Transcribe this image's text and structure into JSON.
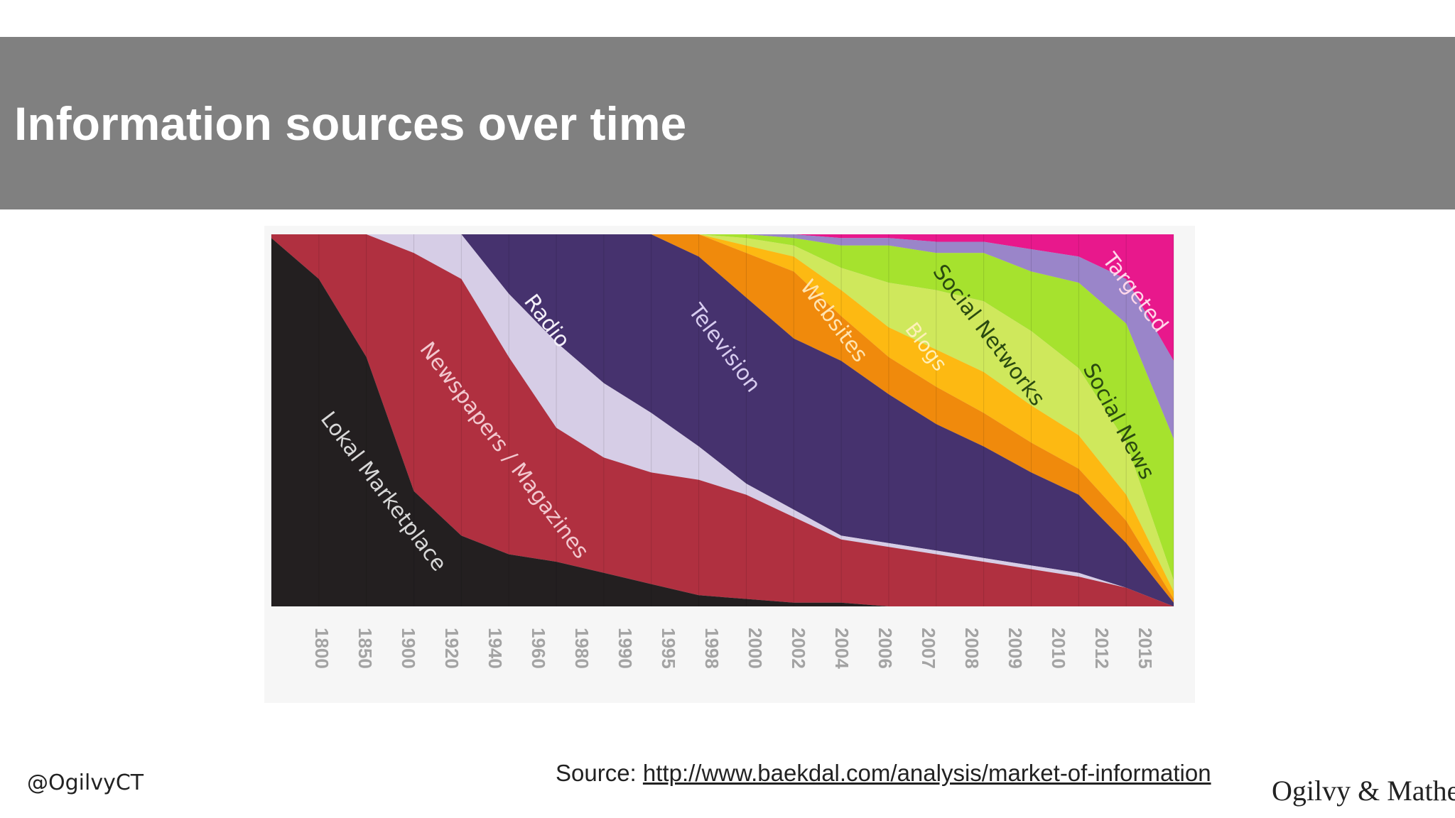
{
  "slide": {
    "title": "Information sources over time",
    "handle": "@OgilvyCT",
    "source_prefix": "Source: ",
    "source_link": "http://www.baekdal.com/analysis/market-of-information",
    "logo_text": "Ogilvy & Mather"
  },
  "chart_data": {
    "type": "area",
    "stacked": true,
    "normalized": true,
    "title": "",
    "xlabel": "",
    "ylabel": "",
    "ylim": [
      0,
      1
    ],
    "grid": "vertical",
    "legend": "none (labels drawn inside areas)",
    "x": [
      "1800",
      "1850",
      "1900",
      "1920",
      "1940",
      "1960",
      "1980",
      "1990",
      "1995",
      "1998",
      "2000",
      "2002",
      "2004",
      "2006",
      "2007",
      "2008",
      "2009",
      "2010",
      "2012",
      "2015"
    ],
    "series": [
      {
        "name": "Lokal Marketplace",
        "color": "#231f20",
        "values": [
          0.99,
          0.88,
          0.67,
          0.31,
          0.19,
          0.14,
          0.12,
          0.09,
          0.06,
          0.03,
          0.02,
          0.01,
          0.01,
          0.0,
          0.0,
          0.0,
          0.0,
          0.0,
          0.0,
          0.0
        ]
      },
      {
        "name": "Newspapers / Magazines",
        "color": "#b03040",
        "values": [
          0.01,
          0.12,
          0.33,
          0.64,
          0.69,
          0.53,
          0.36,
          0.31,
          0.3,
          0.31,
          0.28,
          0.23,
          0.17,
          0.16,
          0.14,
          0.12,
          0.1,
          0.08,
          0.05,
          0.0
        ]
      },
      {
        "name": "Radio",
        "color": "#d6cde6",
        "values": [
          0.0,
          0.0,
          0.0,
          0.05,
          0.12,
          0.17,
          0.23,
          0.2,
          0.16,
          0.09,
          0.03,
          0.02,
          0.01,
          0.01,
          0.01,
          0.01,
          0.01,
          0.01,
          0.0,
          0.0
        ]
      },
      {
        "name": "Television",
        "color": "#46326e",
        "values": [
          0.0,
          0.0,
          0.0,
          0.0,
          0.0,
          0.16,
          0.29,
          0.4,
          0.48,
          0.51,
          0.5,
          0.46,
          0.47,
          0.4,
          0.34,
          0.3,
          0.25,
          0.21,
          0.12,
          0.01
        ]
      },
      {
        "name": "Websites",
        "color": "#f08a0c",
        "values": [
          0.0,
          0.0,
          0.0,
          0.0,
          0.0,
          0.0,
          0.0,
          0.0,
          0.0,
          0.06,
          0.12,
          0.18,
          0.12,
          0.1,
          0.1,
          0.09,
          0.08,
          0.07,
          0.06,
          0.01
        ]
      },
      {
        "name": "Blogs",
        "color": "#fdb912",
        "values": [
          0.0,
          0.0,
          0.0,
          0.0,
          0.0,
          0.0,
          0.0,
          0.0,
          0.0,
          0.0,
          0.02,
          0.04,
          0.07,
          0.08,
          0.1,
          0.11,
          0.1,
          0.09,
          0.07,
          0.02
        ]
      },
      {
        "name": "Social Networks",
        "color": "#cfe85c",
        "values": [
          0.0,
          0.0,
          0.0,
          0.0,
          0.0,
          0.0,
          0.0,
          0.0,
          0.0,
          0.0,
          0.02,
          0.03,
          0.06,
          0.12,
          0.16,
          0.19,
          0.2,
          0.18,
          0.14,
          0.03
        ]
      },
      {
        "name": "Social News",
        "color": "#a6e22e",
        "values": [
          0.0,
          0.0,
          0.0,
          0.0,
          0.0,
          0.0,
          0.0,
          0.0,
          0.0,
          0.0,
          0.01,
          0.02,
          0.06,
          0.1,
          0.1,
          0.13,
          0.16,
          0.23,
          0.32,
          0.38
        ]
      },
      {
        "name": "",
        "color": "#9a85c9",
        "values": [
          0.0,
          0.0,
          0.0,
          0.0,
          0.0,
          0.0,
          0.0,
          0.0,
          0.0,
          0.0,
          0.0,
          0.01,
          0.02,
          0.02,
          0.03,
          0.03,
          0.06,
          0.07,
          0.12,
          0.21
        ]
      },
      {
        "name": "Targeted",
        "color": "#e8188c",
        "values": [
          0.0,
          0.0,
          0.0,
          0.0,
          0.0,
          0.0,
          0.0,
          0.0,
          0.0,
          0.0,
          0.0,
          0.0,
          0.01,
          0.01,
          0.02,
          0.02,
          0.04,
          0.06,
          0.12,
          0.34
        ]
      }
    ]
  }
}
